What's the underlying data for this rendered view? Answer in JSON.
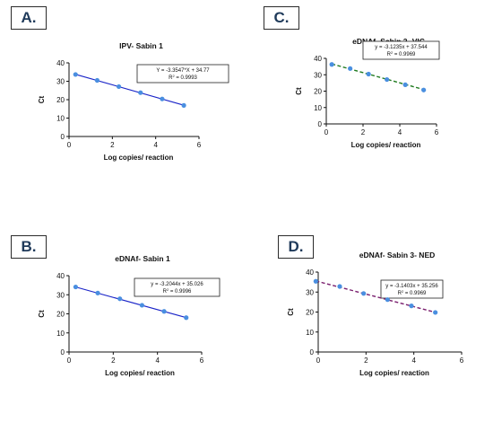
{
  "chart_data": [
    {
      "panel": "A.",
      "type": "scatter",
      "title": "IPV- Sabin 1",
      "xlabel": "Log copies/ reaction",
      "ylabel": "Ct",
      "xlim": [
        0,
        6
      ],
      "ylim": [
        0,
        40
      ],
      "xticks": [
        0,
        2,
        4,
        6
      ],
      "yticks": [
        0,
        10,
        20,
        30,
        40
      ],
      "x": [
        0.3,
        1.3,
        2.3,
        3.3,
        4.3,
        5.3
      ],
      "y": [
        33.7,
        30.5,
        27.1,
        23.8,
        20.4,
        16.9
      ],
      "point_color": "#4a8fe0",
      "fit": {
        "slope": -3.3547,
        "intercept": 34.77,
        "color": "#1a24c8",
        "style": "solid"
      },
      "equation": "Y = -3.3547*X + 34.77",
      "r2_label": "R",
      "r2_value": " = 0.9993"
    },
    {
      "panel": "C.",
      "type": "scatter",
      "title": "eDNAf- Sabin 2- VIC",
      "xlabel": "Log copies/ reaction",
      "ylabel": "Ct",
      "xlim": [
        0,
        6
      ],
      "ylim": [
        0,
        40
      ],
      "xticks": [
        0,
        2,
        4,
        6
      ],
      "yticks": [
        0,
        10,
        20,
        30,
        40
      ],
      "x": [
        0.3,
        1.3,
        2.3,
        3.3,
        4.3,
        5.3
      ],
      "y": [
        36.3,
        33.8,
        30.4,
        27.1,
        23.9,
        20.7
      ],
      "point_color": "#4a8fe0",
      "fit": {
        "slope": -3.1235,
        "intercept": 37.544,
        "color": "#1f7a1f",
        "style": "dashed"
      },
      "equation": "y = -3.1235x + 37.544",
      "r2_label": "R",
      "r2_value": " = 0.9969"
    },
    {
      "panel": "B.",
      "type": "scatter",
      "title": "eDNAf- Sabin 1",
      "xlabel": "Log copies/ reaction",
      "ylabel": "Ct",
      "xlim": [
        0,
        6
      ],
      "ylim": [
        0,
        40
      ],
      "xticks": [
        0,
        2,
        4,
        6
      ],
      "yticks": [
        0,
        10,
        20,
        30,
        40
      ],
      "x": [
        0.3,
        1.3,
        2.3,
        3.3,
        4.3,
        5.3
      ],
      "y": [
        34.1,
        30.9,
        27.9,
        24.5,
        21.3,
        18.0
      ],
      "point_color": "#4a8fe0",
      "fit": {
        "slope": -3.2044,
        "intercept": 35.026,
        "color": "#1a24c8",
        "style": "solid"
      },
      "equation": "y = -3.2044x + 35.026",
      "r2_label": "R",
      "r2_value": " = 0.9996"
    },
    {
      "panel": "D.",
      "type": "scatter",
      "title": "eDNAf- Sabin 3- NED",
      "xlabel": "Log copies/ reaction",
      "ylabel": "Ct",
      "xlim": [
        0,
        6
      ],
      "ylim": [
        0,
        40
      ],
      "xticks": [
        0,
        2,
        4,
        6
      ],
      "yticks": [
        0,
        10,
        20,
        30,
        40
      ],
      "x": [
        -0.1,
        0.9,
        1.9,
        2.9,
        3.9,
        4.9
      ],
      "y": [
        35.4,
        32.8,
        29.3,
        26.2,
        23.1,
        19.8
      ],
      "point_color": "#4a8fe0",
      "fit": {
        "slope": -3.1403,
        "intercept": 35.256,
        "color": "#7a1f6e",
        "style": "dashed"
      },
      "equation": "y = -3.1403x + 35.256",
      "r2_label": "R",
      "r2_value": " = 0.9969"
    }
  ]
}
